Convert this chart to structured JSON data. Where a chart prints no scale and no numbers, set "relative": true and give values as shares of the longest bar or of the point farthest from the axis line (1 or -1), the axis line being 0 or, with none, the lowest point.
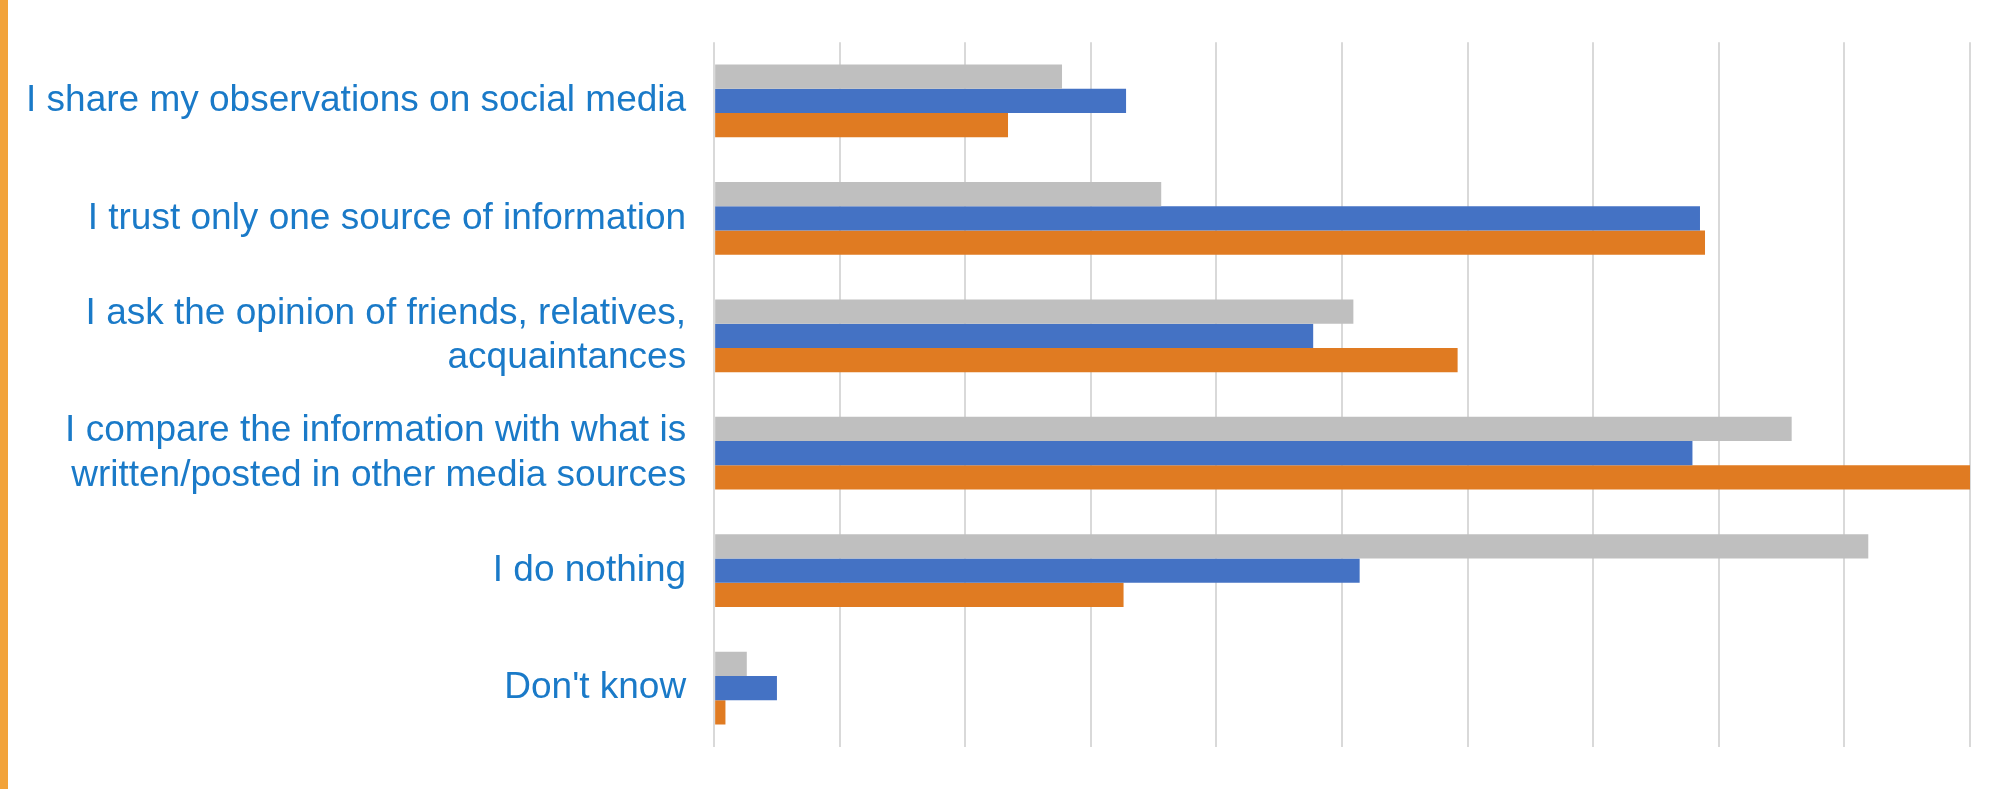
{
  "chart_data": {
    "type": "bar",
    "orientation": "horizontal",
    "relative": true,
    "grid": "x",
    "legend": false,
    "categories": [
      "I share my observations on social media",
      "I trust only one source of information",
      "I ask the opinion of friends, relatives, acquaintances",
      "I compare the information with what is written/posted in other media sources",
      "I do nothing",
      "Don't know"
    ],
    "series": [
      {
        "color": "#bfbfbf",
        "values": [
          0.277,
          0.356,
          0.509,
          0.858,
          0.919,
          0.026
        ]
      },
      {
        "color": "#4472c4",
        "values": [
          0.328,
          0.785,
          0.477,
          0.779,
          0.514,
          0.05
        ]
      },
      {
        "color": "#e07b22",
        "values": [
          0.234,
          0.789,
          0.592,
          1,
          0.326,
          0.009
        ]
      }
    ]
  }
}
